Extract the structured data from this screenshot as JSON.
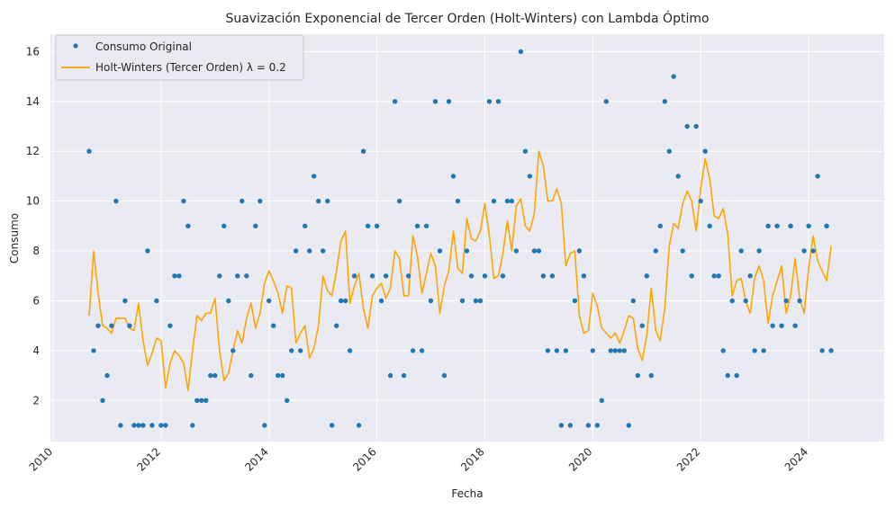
{
  "chart_data": {
    "type": "line",
    "title": "Suavización Exponencial de Tercer Orden (Holt-Winters) con Lambda Óptimo",
    "xlabel": "Fecha",
    "ylabel": "Consumo",
    "xlim": [
      2009.95,
      2025.4
    ],
    "ylim": [
      0.35,
      16.7
    ],
    "x_ticks": [
      2010,
      2012,
      2014,
      2016,
      2018,
      2020,
      2022,
      2024
    ],
    "x_tick_labels": [
      "2010",
      "2012",
      "2014",
      "2016",
      "2018",
      "2020",
      "2022",
      "2024"
    ],
    "y_ticks": [
      2,
      4,
      6,
      8,
      10,
      12,
      14,
      16
    ],
    "y_tick_labels": [
      "2",
      "4",
      "6",
      "8",
      "10",
      "12",
      "14",
      "16"
    ],
    "grid": true,
    "legend_position": "top-left",
    "x_start_year": 2010.667,
    "x_step_years": 0.08333,
    "series": [
      {
        "name": "Consumo Original",
        "style": "scatter",
        "color": "#1f77b4",
        "values": [
          12,
          4,
          5,
          2,
          3,
          5,
          10,
          1,
          6,
          5,
          1,
          1,
          1,
          8,
          1,
          6,
          1,
          1,
          5,
          7,
          7,
          10,
          9,
          1,
          2,
          2,
          2,
          3,
          3,
          7,
          9,
          6,
          4,
          7,
          10,
          7,
          3,
          9,
          10,
          1,
          6,
          5,
          3,
          3,
          2,
          4,
          8,
          4,
          9,
          8,
          11,
          10,
          8,
          10,
          1,
          5,
          6,
          6,
          4,
          7,
          1,
          12,
          9,
          7,
          9,
          6,
          7,
          3,
          14,
          10,
          3,
          7,
          4,
          9,
          4,
          9,
          6,
          14,
          8,
          3,
          14,
          11,
          10,
          6,
          8,
          7,
          6,
          6,
          7,
          14,
          10,
          14,
          7,
          10,
          10,
          8,
          16,
          12,
          11,
          8,
          8,
          7,
          4,
          7,
          4,
          1,
          4,
          1,
          6,
          8,
          7,
          1,
          4,
          1,
          2,
          14,
          4,
          4,
          4,
          4,
          1,
          6,
          3,
          5,
          7,
          3,
          8,
          9,
          14,
          12,
          15,
          11,
          8,
          13,
          7,
          13,
          10,
          12,
          9,
          7,
          7,
          4,
          3,
          6,
          3,
          8,
          6,
          7,
          4,
          8,
          4,
          9,
          5,
          9,
          5,
          6,
          9,
          5,
          6,
          8,
          9,
          8,
          11,
          4,
          9,
          4
        ],
        "note": "monthly points starting Sep 2010"
      },
      {
        "name": "Holt-Winters (Tercer Orden) λ = 0.2",
        "style": "line",
        "color": "#ffa500",
        "values": [
          5.4,
          8.0,
          6.3,
          5.0,
          4.9,
          4.7,
          5.3,
          5.3,
          5.3,
          4.9,
          4.8,
          5.9,
          4.4,
          3.4,
          3.9,
          4.5,
          4.4,
          2.5,
          3.5,
          4.0,
          3.8,
          3.5,
          2.4,
          4.0,
          5.4,
          5.2,
          5.5,
          5.5,
          6.1,
          4.0,
          2.8,
          3.1,
          4.0,
          4.8,
          4.3,
          5.3,
          5.9,
          4.9,
          5.5,
          6.7,
          7.2,
          6.8,
          6.3,
          5.5,
          6.6,
          6.5,
          4.3,
          4.7,
          5.0,
          3.7,
          4.1,
          5.0,
          7.0,
          6.4,
          6.2,
          7.2,
          8.4,
          8.8,
          5.9,
          6.6,
          7.1,
          5.7,
          4.9,
          6.2,
          6.5,
          6.7,
          6.1,
          6.5,
          8.0,
          7.7,
          6.2,
          6.2,
          8.6,
          7.8,
          6.3,
          7.1,
          7.9,
          7.4,
          5.5,
          6.6,
          7.2,
          8.8,
          7.3,
          7.1,
          9.3,
          8.5,
          8.4,
          8.8,
          9.9,
          8.6,
          6.9,
          7.0,
          7.9,
          9.2,
          8.0,
          9.8,
          10.1,
          9.0,
          8.8,
          9.5,
          12.0,
          11.4,
          10.0,
          10.0,
          10.5,
          9.9,
          7.4,
          7.9,
          8.0,
          5.4,
          4.7,
          4.8,
          6.3,
          5.8,
          4.9,
          4.7,
          4.5,
          4.7,
          4.3,
          4.8,
          5.4,
          5.3,
          4.1,
          3.6,
          4.6,
          6.5,
          4.8,
          4.4,
          5.7,
          8.2,
          9.1,
          8.9,
          9.9,
          10.4,
          10.0,
          8.8,
          10.5,
          11.7,
          10.9,
          9.4,
          9.3,
          9.7,
          8.7,
          6.2,
          6.8,
          6.9,
          6.0,
          5.5,
          6.9,
          7.4,
          6.8,
          5.1,
          6.2,
          6.8,
          7.4,
          5.5,
          6.2,
          7.7,
          6.1,
          5.5,
          7.3,
          8.6,
          7.6,
          7.2,
          6.8,
          8.2
        ],
        "note": "monthly values starting Sep 2010"
      }
    ]
  }
}
